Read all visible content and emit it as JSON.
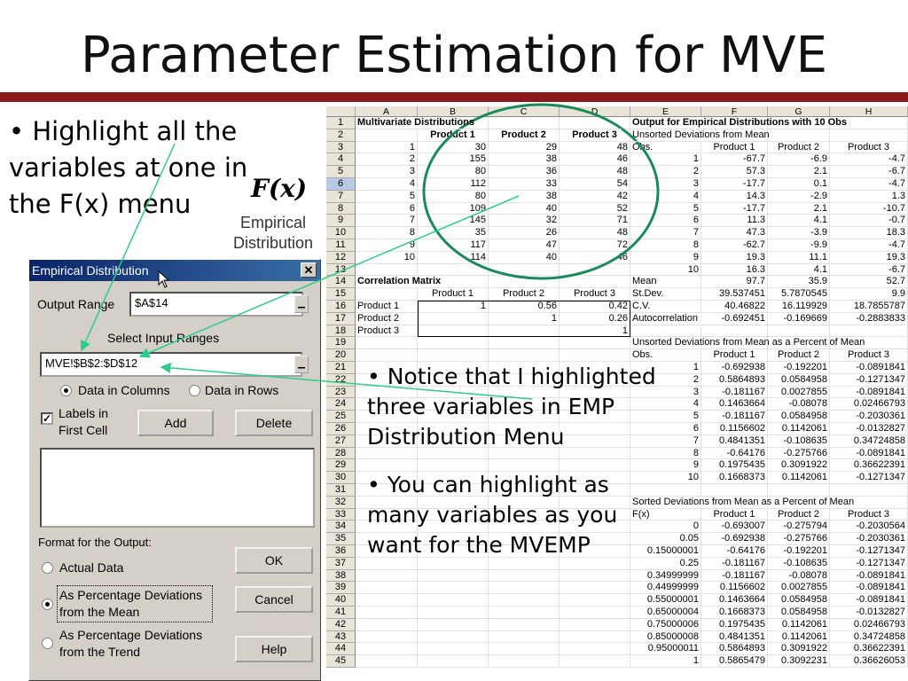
{
  "title": "Parameter Estimation for MVE",
  "bullets": {
    "b1": "• Highlight all the variables at one in the F(x) menu",
    "b2": "• Notice that I highlighted three variables in EMP Distribution Menu",
    "b3": "• You can highlight as many variables as you want for the MVEMP"
  },
  "fx_icon": {
    "symbol": "F(x)",
    "caption": "Empirical Distribution"
  },
  "colors": {
    "title_rule": "#8b1a1a",
    "circle": "#1a8a5a",
    "arrow": "#2ecc8a",
    "dialog_title": "#0a246a"
  },
  "dialog": {
    "title": "Empirical Distribution",
    "output_range_label": "Output Range",
    "output_range_value": "$A$14",
    "select_label": "Select Input Ranges",
    "input_range_value": "MVE!$B$2:$D$12",
    "data_in_columns": "Data in Columns",
    "data_in_rows": "Data in Rows",
    "labels_first_cell": "Labels in First Cell",
    "add": "Add",
    "delete": "Delete",
    "format_label": "Format for the Output:",
    "opt_actual": "Actual Data",
    "opt_pct_mean": "As Percentage Deviations from the Mean",
    "opt_pct_trend": "As Percentage Deviations from the Trend",
    "ok": "OK",
    "cancel": "Cancel",
    "help": "Help"
  },
  "sheet": {
    "columns": [
      "A",
      "B",
      "C",
      "D",
      "E",
      "F",
      "G",
      "H"
    ],
    "rows": [
      [
        "Multivariate Distributions",
        "",
        "",
        "",
        "Output for Empirical Distributions with 10 Obs",
        "",
        "",
        ""
      ],
      [
        "",
        "Product 1",
        "Product 2",
        "Product 3",
        "Unsorted Deviations from Mean",
        "",
        "",
        ""
      ],
      [
        "1",
        "30",
        "29",
        "48",
        "Obs.",
        "Product 1",
        "Product 2",
        "Product 3"
      ],
      [
        "2",
        "155",
        "38",
        "46",
        "1",
        "-67.7",
        "-6.9",
        "-4.7"
      ],
      [
        "3",
        "80",
        "36",
        "48",
        "2",
        "57.3",
        "2.1",
        "-6.7"
      ],
      [
        "4",
        "112",
        "33",
        "54",
        "3",
        "-17.7",
        "0.1",
        "-4.7"
      ],
      [
        "5",
        "80",
        "38",
        "42",
        "4",
        "14.3",
        "-2.9",
        "1.3"
      ],
      [
        "6",
        "109",
        "40",
        "52",
        "5",
        "-17.7",
        "2.1",
        "-10.7"
      ],
      [
        "7",
        "145",
        "32",
        "71",
        "6",
        "11.3",
        "4.1",
        "-0.7"
      ],
      [
        "8",
        "35",
        "26",
        "48",
        "7",
        "47.3",
        "-3.9",
        "18.3"
      ],
      [
        "9",
        "117",
        "47",
        "72",
        "8",
        "-62.7",
        "-9.9",
        "-4.7"
      ],
      [
        "10",
        "114",
        "40",
        "46",
        "9",
        "19.3",
        "11.1",
        "19.3"
      ],
      [
        "",
        "",
        "",
        "",
        "10",
        "16.3",
        "4.1",
        "-6.7"
      ],
      [
        "Correlation Matrix",
        "",
        "",
        "",
        "Mean",
        "97.7",
        "35.9",
        "52.7"
      ],
      [
        "",
        "Product 1",
        "Product 2",
        "Product 3",
        "St.Dev.",
        "39.537451",
        "5.7870545",
        "9.9"
      ],
      [
        "Product 1",
        "1",
        "0.56",
        "0.42",
        "C.V.",
        "40.46822",
        "16.119929",
        "18.7855787"
      ],
      [
        "Product 2",
        "",
        "1",
        "0.26",
        "Autocorrelation",
        "-0.692451",
        "-0.169669",
        "-0.2883833"
      ],
      [
        "Product 3",
        "",
        "",
        "1",
        "",
        "",
        "",
        ""
      ],
      [
        "",
        "",
        "",
        "",
        "Unsorted Deviations from Mean as a Percent of Mean",
        "",
        "",
        ""
      ],
      [
        "",
        "",
        "",
        "",
        "Obs.",
        "Product 1",
        "Product 2",
        "Product 3"
      ],
      [
        "",
        "",
        "",
        "",
        "1",
        "-0.692938",
        "-0.192201",
        "-0.0891841"
      ],
      [
        "",
        "",
        "",
        "",
        "2",
        "0.5864893",
        "0.0584958",
        "-0.1271347"
      ],
      [
        "",
        "",
        "",
        "",
        "3",
        "-0.181167",
        "0.0027855",
        "-0.0891841"
      ],
      [
        "",
        "",
        "",
        "",
        "4",
        "0.1463664",
        "-0.08078",
        "0.02466793"
      ],
      [
        "",
        "",
        "",
        "",
        "5",
        "-0.181167",
        "0.0584958",
        "-0.2030361"
      ],
      [
        "",
        "",
        "",
        "",
        "6",
        "0.1156602",
        "0.1142061",
        "-0.0132827"
      ],
      [
        "",
        "",
        "",
        "",
        "7",
        "0.4841351",
        "-0.108635",
        "0.34724858"
      ],
      [
        "",
        "",
        "",
        "",
        "8",
        "-0.64176",
        "-0.275766",
        "-0.0891841"
      ],
      [
        "",
        "",
        "",
        "",
        "9",
        "0.1975435",
        "0.3091922",
        "0.36622391"
      ],
      [
        "",
        "",
        "",
        "",
        "10",
        "0.1668373",
        "0.1142061",
        "-0.1271347"
      ],
      [
        "",
        "",
        "",
        "",
        "",
        "",
        "",
        ""
      ],
      [
        "",
        "",
        "",
        "",
        "Sorted Deviations from Mean as a Percent of Mean",
        "",
        "",
        ""
      ],
      [
        "",
        "",
        "",
        "",
        "F(x)",
        "Product 1",
        "Product 2",
        "Product 3"
      ],
      [
        "",
        "",
        "",
        "",
        "0",
        "-0.693007",
        "-0.275794",
        "-0.2030564"
      ],
      [
        "",
        "",
        "",
        "",
        "0.05",
        "-0.692938",
        "-0.275766",
        "-0.2030361"
      ],
      [
        "",
        "",
        "",
        "",
        "0.15000001",
        "-0.64176",
        "-0.192201",
        "-0.1271347"
      ],
      [
        "",
        "",
        "",
        "",
        "0.25",
        "-0.181167",
        "-0.108635",
        "-0.1271347"
      ],
      [
        "",
        "",
        "",
        "",
        "0.34999999",
        "-0.181167",
        "-0.08078",
        "-0.0891841"
      ],
      [
        "",
        "",
        "",
        "",
        "0.44999999",
        "0.1156602",
        "0.0027855",
        "-0.0891841"
      ],
      [
        "",
        "",
        "",
        "",
        "0.55000001",
        "0.1463664",
        "0.0584958",
        "-0.0891841"
      ],
      [
        "",
        "",
        "",
        "",
        "0.65000004",
        "0.1668373",
        "0.0584958",
        "-0.0132827"
      ],
      [
        "",
        "",
        "",
        "",
        "0.75000006",
        "0.1975435",
        "0.1142061",
        "0.02466793"
      ],
      [
        "",
        "",
        "",
        "",
        "0.85000008",
        "0.4841351",
        "0.1142061",
        "0.34724858"
      ],
      [
        "",
        "",
        "",
        "",
        "0.95000011",
        "0.5864893",
        "0.3091922",
        "0.36622391"
      ],
      [
        "",
        "",
        "",
        "",
        "1",
        "0.5865479",
        "0.3092231",
        "0.36626053"
      ]
    ]
  }
}
